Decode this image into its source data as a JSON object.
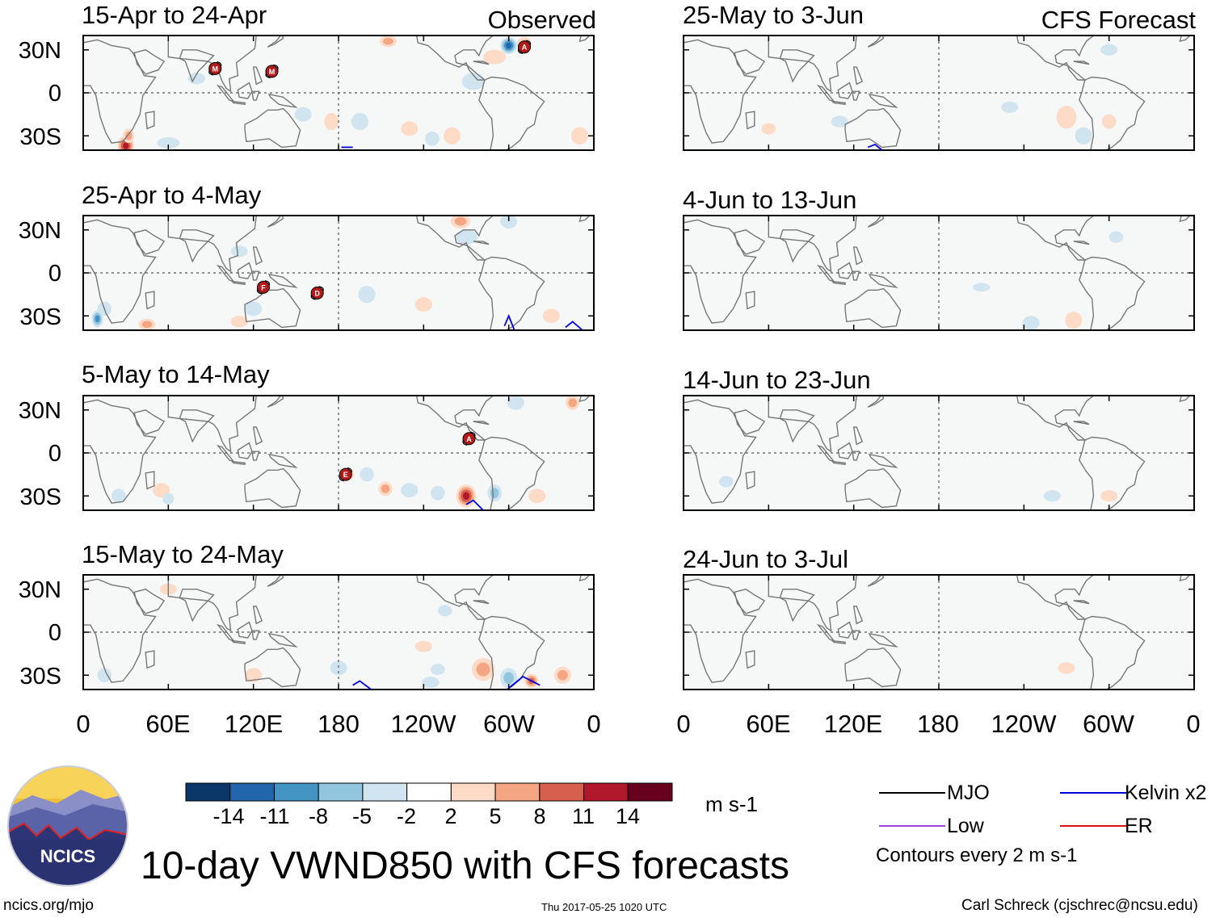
{
  "chart_data": {
    "type": "heatmap",
    "title": "10-day VWND850 with CFS forecasts",
    "units": "m s-1",
    "columns": [
      {
        "label": "Observed",
        "panels": [
          "15-Apr to 24-Apr",
          "25-Apr to 4-May",
          "5-May to 14-May",
          "15-May to 24-May"
        ]
      },
      {
        "label": "CFS Forecast",
        "panels": [
          "25-May to 3-Jun",
          "4-Jun to 13-Jun",
          "14-Jun to 23-Jun",
          "24-Jun to 3-Jul"
        ]
      }
    ],
    "y_ticks": [
      "30N",
      "0",
      "30S"
    ],
    "x_ticks": [
      "0",
      "60E",
      "120E",
      "180",
      "120W",
      "60W",
      "0"
    ],
    "lat_range": [
      -40,
      40
    ],
    "lon_range": [
      0,
      360
    ],
    "colorbar": {
      "ticks": [
        "-14",
        "-11",
        "-8",
        "-5",
        "-2",
        "2",
        "5",
        "8",
        "11",
        "14"
      ],
      "colors": [
        "#0b3768",
        "#2166ac",
        "#4393c3",
        "#92c5de",
        "#d1e5f0",
        "#ffffff",
        "#fddbc7",
        "#f4a582",
        "#d6604d",
        "#b2182b",
        "#67001f"
      ]
    },
    "legend": [
      {
        "label": "MJO",
        "color": "#000000"
      },
      {
        "label": "Kelvin x2",
        "color": "#0000dd"
      },
      {
        "label": "Low",
        "color": "#a040e0"
      },
      {
        "label": "ER",
        "color": "#dd1111"
      }
    ],
    "contour_note": "Contours every 2 m s-1",
    "storm_markers": [
      {
        "panel": 0,
        "lon": 93,
        "lat": 17,
        "letter": "M"
      },
      {
        "panel": 0,
        "lon": 133,
        "lat": 15,
        "letter": "M"
      },
      {
        "panel": 0,
        "lon": 311,
        "lat": 32,
        "letter": "A"
      },
      {
        "panel": 1,
        "lon": 127,
        "lat": -10,
        "letter": "F"
      },
      {
        "panel": 1,
        "lon": 165,
        "lat": -14,
        "letter": "D"
      },
      {
        "panel": 2,
        "lon": 272,
        "lat": 10,
        "letter": "A"
      },
      {
        "panel": 2,
        "lon": 185,
        "lat": -15,
        "letter": "E"
      }
    ]
  },
  "footer": {
    "logo_text": "NCICS",
    "url": "ncics.org/mjo",
    "timestamp": "Thu 2017-05-25 1020 UTC",
    "author": "Carl Schreck (cjschrec@ncsu.edu)"
  }
}
